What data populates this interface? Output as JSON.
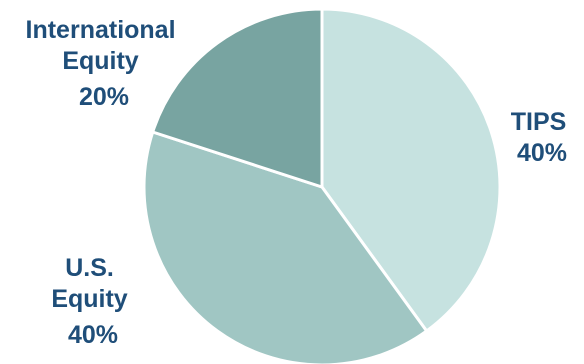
{
  "chart_data": {
    "type": "pie",
    "title": "",
    "slices": [
      {
        "name": "TIPS",
        "value": 40,
        "value_label": "40%",
        "color": "#c6e2e0"
      },
      {
        "name": "U.S. Equity",
        "value": 40,
        "value_label": "40%",
        "color": "#a0c6c3"
      },
      {
        "name": "International Equity",
        "value": 20,
        "value_label": "20%",
        "color": "#78a4a1"
      }
    ],
    "legend": "none",
    "label_color": "#1f4e79",
    "slice_border_color": "#ffffff",
    "start_angle_deg": 0,
    "direction": "clockwise"
  }
}
